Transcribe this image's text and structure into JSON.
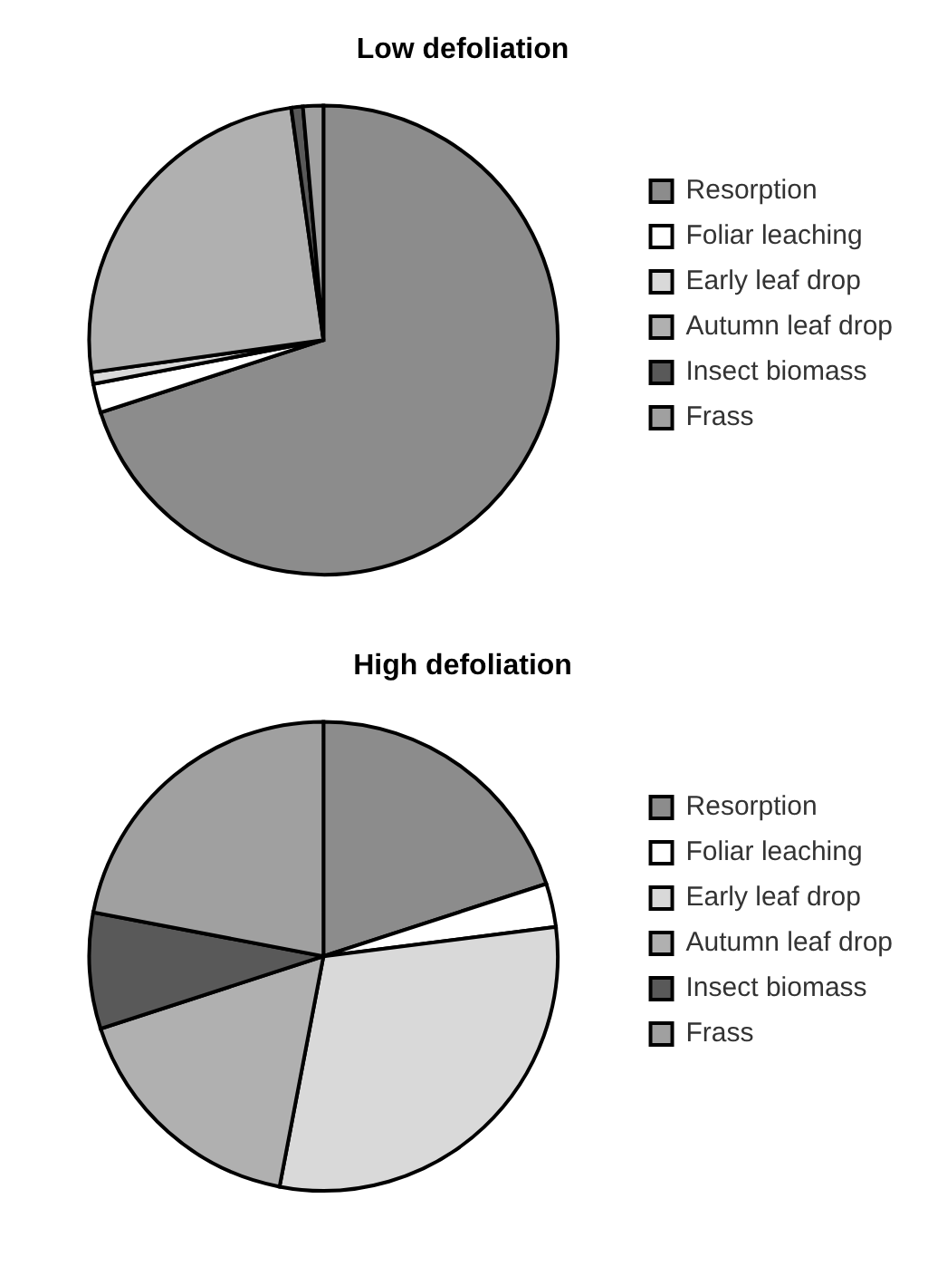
{
  "chart_data": [
    {
      "type": "pie",
      "title": "Low defoliation",
      "categories": [
        "Resorption",
        "Foliar leaching",
        "Early leaf drop",
        "Autumn leaf drop",
        "Insect biomass",
        "Frass"
      ],
      "values": [
        70,
        2,
        0.8,
        25,
        0.8,
        1.4
      ],
      "colors": [
        "#8c8c8c",
        "#ffffff",
        "#d9d9d9",
        "#b0b0b0",
        "#595959",
        "#a0a0a0"
      ],
      "legend": "right"
    },
    {
      "type": "pie",
      "title": "High defoliation",
      "categories": [
        "Resorption",
        "Foliar leaching",
        "Early leaf drop",
        "Autumn leaf drop",
        "Insect biomass",
        "Frass"
      ],
      "values": [
        20,
        3,
        30,
        17,
        8,
        22
      ],
      "colors": [
        "#8c8c8c",
        "#ffffff",
        "#d9d9d9",
        "#b0b0b0",
        "#595959",
        "#a0a0a0"
      ],
      "legend": "right"
    }
  ]
}
